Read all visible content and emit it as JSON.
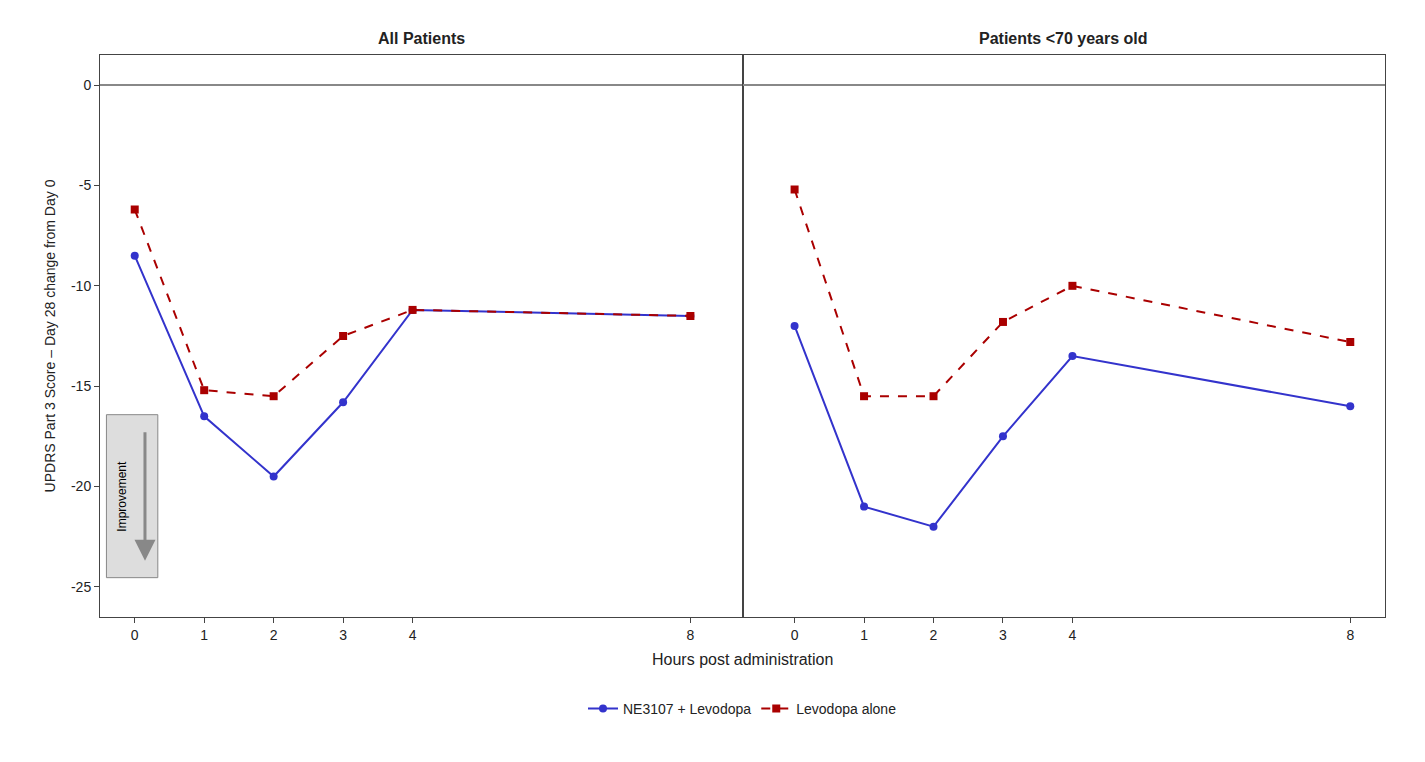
{
  "chart_data": [
    {
      "type": "line",
      "title": "All Patients",
      "xlabel": "Hours post administration",
      "ylabel": "UPDRS Part 3 Score – Day 28 change from Day 0",
      "annotations": [
        "Improvement"
      ],
      "x": [
        0,
        1,
        2,
        3,
        4,
        8
      ],
      "xlim": [
        -0.5,
        8.75
      ],
      "xticks": [
        0,
        1,
        2,
        3,
        4,
        8
      ],
      "ylim": [
        -26.5,
        1.5
      ],
      "yticks": [
        0,
        -5,
        -10,
        -15,
        -20,
        -25
      ],
      "grid": false,
      "legend": "bottom",
      "series": [
        {
          "name": "NE3107 + Levodopa",
          "color": "#3333cc",
          "marker": "circle",
          "line_style": "solid",
          "values": [
            -8.5,
            -16.5,
            -19.5,
            -15.8,
            -11.2,
            -11.5
          ]
        },
        {
          "name": "Levodopa alone",
          "color": "#aa0000",
          "marker": "square",
          "line_style": "dashed",
          "values": [
            -6.2,
            -15.2,
            -15.5,
            -12.5,
            -11.2,
            -11.5
          ]
        }
      ]
    },
    {
      "type": "line",
      "title": "Patients <70 years old",
      "x": [
        0,
        1,
        2,
        3,
        4,
        8
      ],
      "xlim": [
        -0.75,
        8.5
      ],
      "xticks": [
        0,
        1,
        2,
        3,
        4,
        8
      ],
      "ylim": [
        -26.5,
        1.5
      ],
      "grid": false,
      "tick_labels": "x",
      "series": [
        {
          "name": "NE3107 + Levodopa",
          "color": "#3333cc",
          "marker": "circle",
          "line_style": "solid",
          "values": [
            -12.0,
            -21.0,
            -22.0,
            -17.5,
            -13.5,
            -16.0
          ]
        },
        {
          "name": "Levodopa alone",
          "color": "#aa0000",
          "marker": "square",
          "line_style": "dashed",
          "values": [
            -5.2,
            -15.5,
            -15.5,
            -11.8,
            -10.0,
            -12.8
          ]
        }
      ]
    }
  ]
}
